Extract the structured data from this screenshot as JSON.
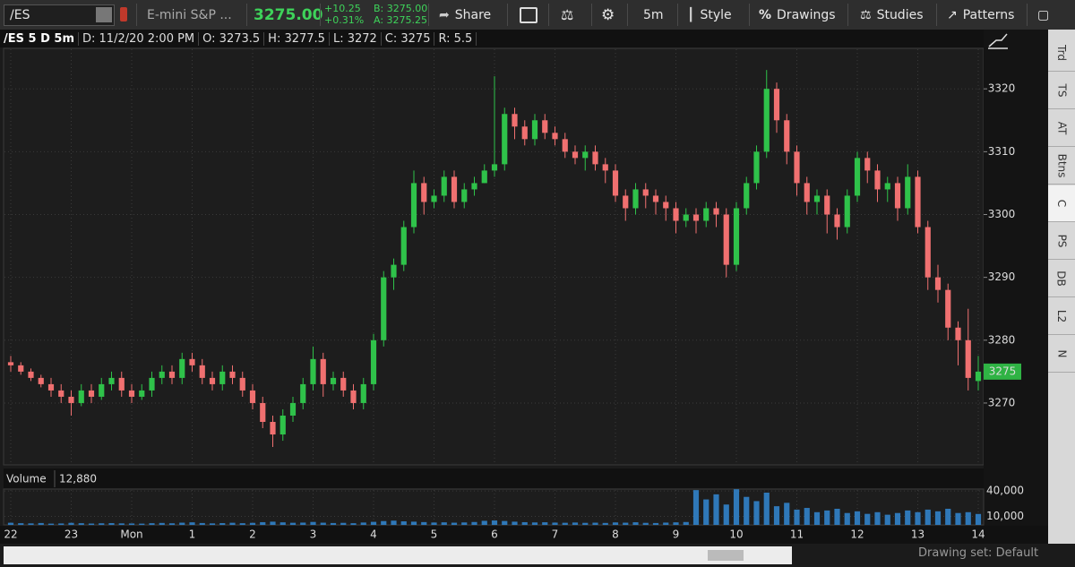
{
  "toolbar": {
    "symbol": "/ES",
    "description": "E-mini S&P ...",
    "last": "3275.00",
    "change": "+10.25",
    "change_pct": "+0.31%",
    "bid": "B: 3275.00",
    "ask": "A: 3275.25",
    "buttons": {
      "share": "Share",
      "interval": "5m",
      "style": "Style",
      "drawings": "Drawings",
      "studies": "Studies",
      "patterns": "Patterns"
    }
  },
  "header": {
    "symbol_label": "/ES 5 D 5m",
    "fields": [
      "D: 11/2/20 2:00 PM",
      "O: 3273.5",
      "H: 3277.5",
      "L: 3272",
      "C: 3275",
      "R: 5.5"
    ]
  },
  "sidebar_tabs": [
    "Trd",
    "TS",
    "AT",
    "Btns",
    "C",
    "PS",
    "DB",
    "L2",
    "N"
  ],
  "footer": "Drawing set: Default",
  "chart_data": {
    "type": "candlestick",
    "categories": [
      "22",
      null,
      null,
      null,
      null,
      null,
      "23",
      null,
      null,
      null,
      null,
      null,
      "Mon",
      null,
      null,
      null,
      null,
      null,
      "1",
      null,
      null,
      null,
      null,
      null,
      "2",
      null,
      null,
      null,
      null,
      null,
      "3",
      null,
      null,
      null,
      null,
      null,
      "4",
      null,
      null,
      null,
      null,
      null,
      "5",
      null,
      null,
      null,
      null,
      null,
      "6",
      null,
      null,
      null,
      null,
      null,
      "7",
      null,
      null,
      null,
      null,
      null,
      "8",
      null,
      null,
      null,
      null,
      null,
      "9",
      null,
      null,
      null,
      null,
      null,
      "10",
      null,
      null,
      null,
      null,
      null,
      "11",
      null,
      null,
      null,
      null,
      null,
      "12",
      null,
      null,
      null,
      null,
      null,
      "13",
      null,
      null,
      null,
      null,
      null,
      "14"
    ],
    "open": [
      3276.5,
      3276,
      3275,
      3274,
      3273,
      3272,
      3271,
      3270,
      3272,
      3271,
      3273,
      3274,
      3272,
      3271,
      3272,
      3274,
      3275,
      3274,
      3277,
      3276,
      3274,
      3273,
      3275,
      3274,
      3272,
      3270,
      3267,
      3265,
      3268,
      3270,
      3273,
      3277,
      3273,
      3274,
      3272,
      3270,
      3273,
      3280,
      3290,
      3292,
      3298,
      3305,
      3302,
      3303,
      3306,
      3302,
      3304,
      3305,
      3307,
      3308,
      3316,
      3314,
      3312,
      3315,
      3313,
      3312,
      3310,
      3309,
      3310,
      3308,
      3307,
      3303,
      3301,
      3304,
      3303,
      3302,
      3301,
      3299,
      3300,
      3299,
      3301,
      3300,
      3292,
      3301,
      3305,
      3310,
      3320,
      3315,
      3310,
      3305,
      3302,
      3303,
      3300,
      3298,
      3303,
      3309,
      3307,
      3304,
      3305,
      3301,
      3306,
      3298,
      3290,
      3288,
      3282,
      3280,
      3273.5
    ],
    "high": [
      3277.5,
      3276.5,
      3275.5,
      3274.5,
      3274,
      3273,
      3272,
      3273,
      3273,
      3274,
      3275,
      3275,
      3273,
      3273,
      3275,
      3276,
      3276,
      3278,
      3278,
      3277,
      3275,
      3276,
      3276,
      3275,
      3273,
      3271,
      3268,
      3269,
      3271,
      3274,
      3279,
      3278,
      3275,
      3275,
      3273,
      3274,
      3281,
      3291,
      3293,
      3299,
      3307,
      3306,
      3304,
      3307,
      3307,
      3305,
      3306,
      3308,
      3322,
      3317,
      3317,
      3315,
      3316,
      3316,
      3314,
      3313,
      3311,
      3311,
      3311,
      3309,
      3308,
      3304,
      3305,
      3305,
      3304,
      3303,
      3302,
      3301,
      3301,
      3302,
      3302,
      3301,
      3302,
      3306,
      3311,
      3323,
      3321,
      3316,
      3311,
      3306,
      3304,
      3304,
      3301,
      3304,
      3310,
      3310,
      3308,
      3306,
      3306,
      3308,
      3307,
      3299,
      3292,
      3289,
      3283,
      3285,
      3277.5
    ],
    "low": [
      3275,
      3274.5,
      3273.5,
      3272.5,
      3271,
      3270,
      3268,
      3269.5,
      3270,
      3270.5,
      3272,
      3271,
      3270,
      3270.5,
      3271,
      3273,
      3273,
      3273,
      3275,
      3273,
      3272,
      3272,
      3273,
      3271,
      3269,
      3266,
      3263,
      3264,
      3267,
      3269,
      3272,
      3271,
      3272,
      3271,
      3269,
      3269,
      3272,
      3279,
      3288,
      3291,
      3297,
      3300,
      3301,
      3302,
      3301,
      3301,
      3303,
      3305,
      3306,
      3307,
      3312,
      3311,
      3311,
      3312,
      3311,
      3309,
      3308,
      3307,
      3307,
      3305,
      3302,
      3299,
      3300,
      3301,
      3300,
      3299,
      3297,
      3298,
      3297,
      3298,
      3298,
      3290,
      3291,
      3300,
      3304,
      3309,
      3313,
      3308,
      3303,
      3300,
      3300,
      3297,
      3296,
      3297,
      3302,
      3305,
      3302,
      3302,
      3299,
      3300,
      3297,
      3288,
      3286,
      3280,
      3276,
      3272,
      3272
    ],
    "close": [
      3276,
      3275,
      3274,
      3273,
      3272,
      3271,
      3270,
      3272,
      3271,
      3273,
      3274,
      3272,
      3271,
      3272,
      3274,
      3275,
      3274,
      3277,
      3276,
      3274,
      3273,
      3275,
      3274,
      3272,
      3270,
      3267,
      3265,
      3268,
      3270,
      3273,
      3277,
      3273,
      3274,
      3272,
      3270,
      3273,
      3280,
      3290,
      3292,
      3298,
      3305,
      3302,
      3303,
      3306,
      3302,
      3304,
      3305,
      3307,
      3308,
      3316,
      3314,
      3312,
      3315,
      3313,
      3312,
      3310,
      3309,
      3310,
      3308,
      3307,
      3303,
      3301,
      3304,
      3303,
      3302,
      3301,
      3299,
      3300,
      3299,
      3301,
      3300,
      3292,
      3301,
      3305,
      3310,
      3320,
      3315,
      3310,
      3305,
      3302,
      3303,
      3300,
      3298,
      3303,
      3309,
      3307,
      3304,
      3305,
      3301,
      3306,
      3298,
      3290,
      3288,
      3282,
      3280,
      3274,
      3275
    ],
    "up_color": "#2fc24a",
    "down_color": "#f07070",
    "ylim": [
      3260.3,
      3326.3
    ],
    "yticks": [
      3270,
      3280,
      3290,
      3300,
      3310,
      3320
    ],
    "grid": true,
    "volume": {
      "title": "Volume",
      "last_label": "12,880",
      "color": "#2f78b8",
      "values": [
        2500,
        2000,
        1800,
        2200,
        1500,
        1700,
        2400,
        2000,
        1600,
        1900,
        2100,
        1800,
        1700,
        1500,
        2000,
        2300,
        1900,
        2600,
        3000,
        2200,
        1800,
        2100,
        2500,
        2000,
        2400,
        3200,
        3800,
        3000,
        2500,
        2700,
        3500,
        2600,
        2200,
        2400,
        2000,
        2800,
        3600,
        4500,
        5000,
        4200,
        3800,
        3300,
        2800,
        3000,
        2600,
        2900,
        3400,
        4800,
        5200,
        4600,
        3800,
        3200,
        2900,
        3100,
        2700,
        2500,
        2800,
        2400,
        2600,
        2300,
        2900,
        2600,
        3100,
        2400,
        2200,
        2700,
        3000,
        3400,
        41000,
        30000,
        36000,
        24000,
        42000,
        33000,
        28000,
        38000,
        22000,
        26000,
        18000,
        20000,
        15000,
        17000,
        19000,
        14000,
        16000,
        13000,
        15000,
        12000,
        14000,
        17000,
        15000,
        18000,
        16000,
        19000,
        14000,
        15000,
        12880
      ],
      "ylim": [
        0,
        42200
      ],
      "yticks": [
        {
          "value": 40000,
          "label": "40,000"
        },
        {
          "value": 10000,
          "label": "10,000"
        }
      ]
    }
  }
}
